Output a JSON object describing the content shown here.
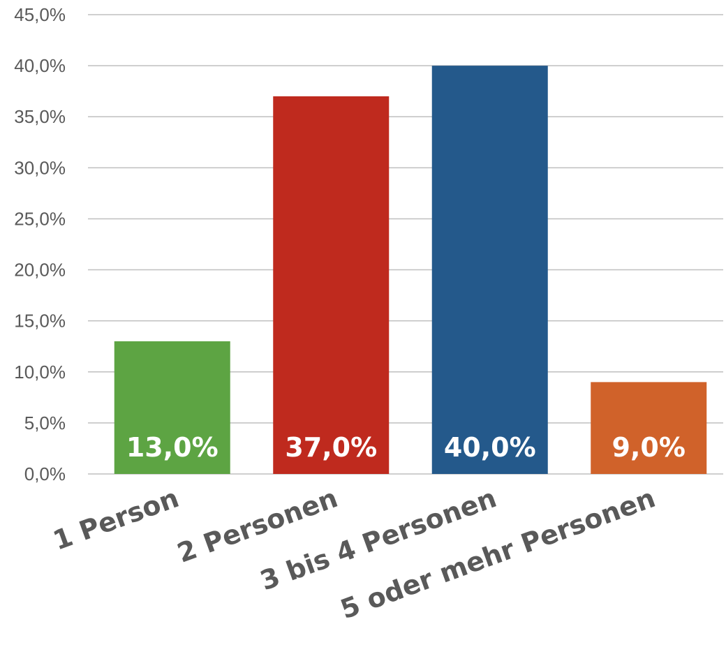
{
  "chart_data": {
    "type": "bar",
    "categories": [
      "1 Person",
      "2 Personen",
      "3 bis 4 Personen",
      "5 oder mehr Personen"
    ],
    "values": [
      13.0,
      37.0,
      40.0,
      9.0
    ],
    "data_labels": [
      "13,0%",
      "37,0%",
      "40,0%",
      "9,0%"
    ],
    "colors": [
      "#5da443",
      "#bf2a1e",
      "#24598b",
      "#d0622a"
    ],
    "yticks": [
      "0,0%",
      "5,0%",
      "10,0%",
      "15,0%",
      "20,0%",
      "25,0%",
      "30,0%",
      "35,0%",
      "40,0%",
      "45,0%"
    ],
    "ylim": [
      0,
      45
    ],
    "ytick_step": 5,
    "grid": true,
    "legend": "none",
    "title": "",
    "xlabel": "",
    "ylabel": ""
  }
}
